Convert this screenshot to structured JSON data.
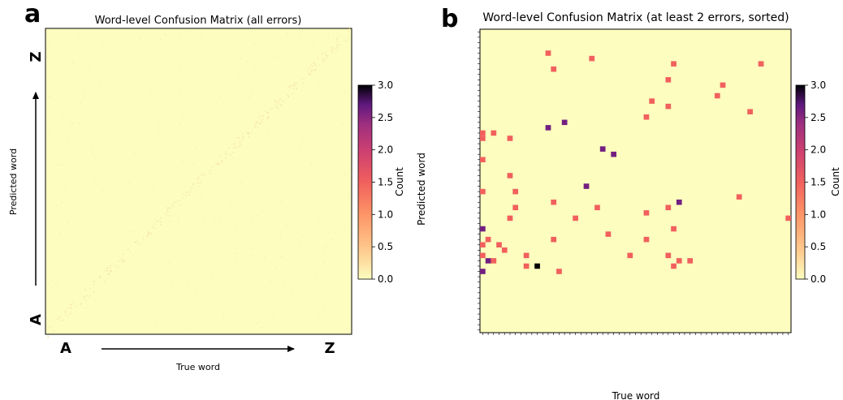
{
  "panel_labels": [
    "a",
    "b"
  ],
  "panel_a": {
    "title": "Word-level Confusion Matrix (all errors)",
    "xlabel": "True word",
    "ylabel": "Predicted word",
    "x_start_letter": "A",
    "x_end_letter": "Z",
    "y_start_letter": "A",
    "y_end_letter": "Z"
  },
  "panel_b": {
    "title": "Word-level Confusion Matrix (at least 2 errors, sorted)",
    "xlabel": "True word",
    "ylabel": "Predicted word"
  },
  "colorbar": {
    "label": "Count",
    "ticks": [
      "0.0",
      "0.5",
      "1.0",
      "1.5",
      "2.0",
      "2.5",
      "3.0"
    ],
    "vmin": 0,
    "vmax": 3,
    "colormap": "magma_r"
  },
  "colors": {
    "background_cell": "#fcfdbf",
    "count_1": "#f1605d",
    "count_2": "#721f81",
    "count_3": "#000004"
  },
  "chart_data": [
    {
      "type": "heatmap",
      "title": "Word-level Confusion Matrix (all errors)",
      "xlabel": "True word",
      "ylabel": "Predicted word",
      "value_range": [
        0,
        3
      ]
    },
    {
      "type": "heatmap",
      "title": "Word-level Confusion Matrix (at least 2 errors, sorted)",
      "xlabel": "True word",
      "ylabel": "Predicted word",
      "value_range": [
        0,
        3
      ],
      "grid_size": 57,
      "cells": [
        [
          12,
          52,
          1
        ],
        [
          20,
          51,
          1
        ],
        [
          35,
          50,
          1
        ],
        [
          51,
          50,
          1
        ],
        [
          13,
          49,
          1
        ],
        [
          34,
          47,
          1
        ],
        [
          44,
          46,
          1
        ],
        [
          43,
          44,
          1
        ],
        [
          31,
          43,
          1
        ],
        [
          34,
          42,
          1
        ],
        [
          49,
          41,
          1
        ],
        [
          30,
          40,
          1
        ],
        [
          12,
          38,
          2
        ],
        [
          15,
          39,
          2
        ],
        [
          2,
          37,
          1
        ],
        [
          0,
          37,
          1
        ],
        [
          5,
          36,
          1
        ],
        [
          0,
          36,
          1
        ],
        [
          22,
          34,
          2
        ],
        [
          24,
          33,
          2
        ],
        [
          0,
          32,
          1
        ],
        [
          5,
          29,
          1
        ],
        [
          19,
          27,
          2
        ],
        [
          0,
          26,
          1
        ],
        [
          6,
          26,
          1
        ],
        [
          47,
          25,
          1
        ],
        [
          36,
          24,
          2
        ],
        [
          13,
          24,
          1
        ],
        [
          34,
          23,
          1
        ],
        [
          6,
          23,
          1
        ],
        [
          21,
          23,
          1
        ],
        [
          30,
          22,
          1
        ],
        [
          5,
          21,
          1
        ],
        [
          17,
          21,
          1
        ],
        [
          56,
          21,
          1
        ],
        [
          0,
          19,
          2
        ],
        [
          35,
          19,
          1
        ],
        [
          23,
          18,
          1
        ],
        [
          1,
          17,
          1
        ],
        [
          13,
          17,
          1
        ],
        [
          30,
          17,
          1
        ],
        [
          0,
          16,
          1
        ],
        [
          3,
          16,
          1
        ],
        [
          4,
          15,
          1
        ],
        [
          0,
          14,
          1
        ],
        [
          8,
          14,
          1
        ],
        [
          27,
          14,
          1
        ],
        [
          34,
          14,
          1
        ],
        [
          1,
          13,
          2
        ],
        [
          2,
          13,
          1
        ],
        [
          36,
          13,
          1
        ],
        [
          38,
          13,
          1
        ],
        [
          10,
          12,
          3
        ],
        [
          8,
          12,
          1
        ],
        [
          35,
          12,
          1
        ],
        [
          0,
          11,
          2
        ],
        [
          14,
          11,
          1
        ]
      ]
    }
  ]
}
